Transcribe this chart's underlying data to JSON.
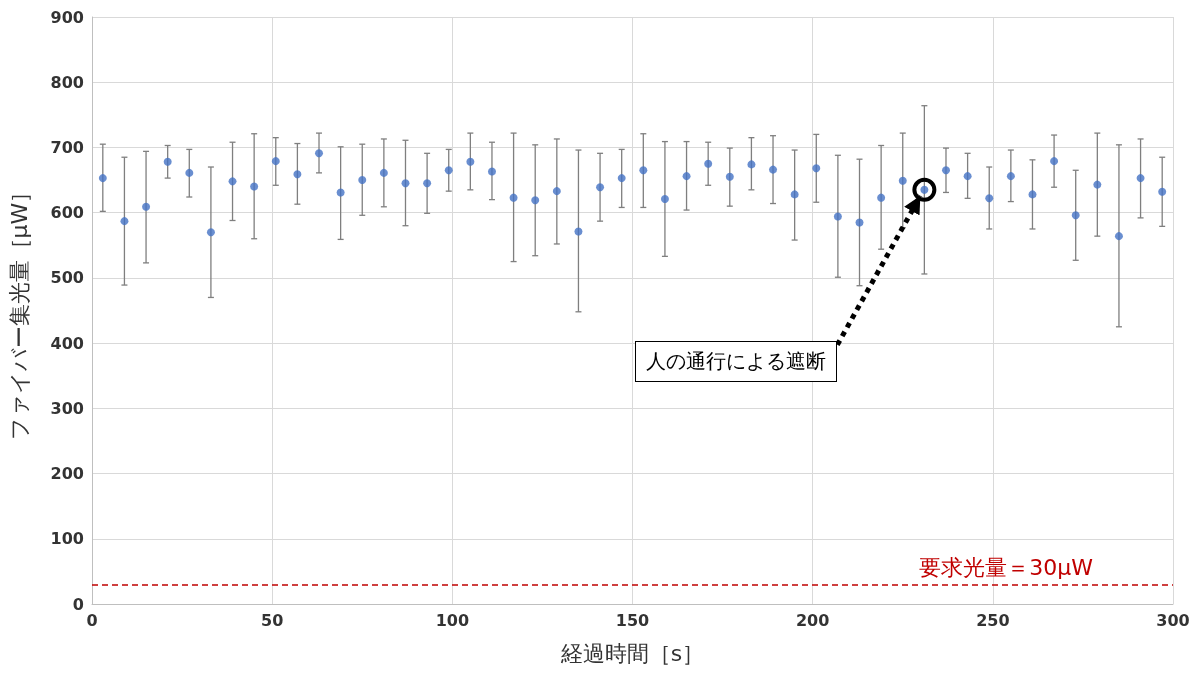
{
  "chart_data": {
    "type": "scatter",
    "xlabel": "経過時間［s］",
    "ylabel": "ファイバー集光量［μW］",
    "xlim": [
      0,
      300
    ],
    "xticks": [
      0,
      50,
      100,
      150,
      200,
      250,
      300
    ],
    "ylim": [
      0,
      900
    ],
    "yticks": [
      0,
      100,
      200,
      300,
      400,
      500,
      600,
      700,
      800,
      900
    ],
    "grid": true,
    "marker": "circle",
    "x": [
      3,
      9,
      15,
      21,
      27,
      33,
      39,
      45,
      51,
      57,
      63,
      69,
      75,
      81,
      87,
      93,
      99,
      105,
      111,
      117,
      123,
      129,
      135,
      141,
      147,
      153,
      159,
      165,
      171,
      177,
      183,
      189,
      195,
      201,
      207,
      213,
      219,
      225,
      231,
      237,
      243,
      249,
      255,
      261,
      267,
      273,
      279,
      285,
      291,
      297
    ],
    "series": [
      {
        "color": "#4472c4",
        "values": [
          653,
          587,
          609,
          678,
          661,
          570,
          648,
          640,
          679,
          659,
          691,
          631,
          650,
          661,
          645,
          645,
          665,
          678,
          663,
          623,
          619,
          633,
          571,
          639,
          653,
          665,
          621,
          656,
          675,
          655,
          674,
          666,
          628,
          668,
          594,
          585,
          623,
          649,
          635,
          665,
          656,
          622,
          656,
          628,
          679,
          596,
          643,
          564,
          653,
          632
        ],
        "errors": [
          [
            602,
            705
          ],
          [
            489,
            685
          ],
          [
            523,
            694
          ],
          [
            653,
            703
          ],
          [
            624,
            697
          ],
          [
            470,
            670
          ],
          [
            588,
            708
          ],
          [
            560,
            721
          ],
          [
            642,
            715
          ],
          [
            613,
            706
          ],
          [
            661,
            722
          ],
          [
            559,
            701
          ],
          [
            596,
            705
          ],
          [
            609,
            713
          ],
          [
            580,
            711
          ],
          [
            599,
            691
          ],
          [
            633,
            697
          ],
          [
            635,
            722
          ],
          [
            620,
            708
          ],
          [
            525,
            722
          ],
          [
            534,
            704
          ],
          [
            552,
            713
          ],
          [
            448,
            696
          ],
          [
            587,
            691
          ],
          [
            608,
            697
          ],
          [
            608,
            721
          ],
          [
            533,
            709
          ],
          [
            604,
            709
          ],
          [
            642,
            708
          ],
          [
            610,
            699
          ],
          [
            635,
            715
          ],
          [
            614,
            718
          ],
          [
            558,
            696
          ],
          [
            616,
            720
          ],
          [
            501,
            688
          ],
          [
            488,
            682
          ],
          [
            544,
            703
          ],
          [
            577,
            722
          ],
          [
            506,
            764
          ],
          [
            631,
            699
          ],
          [
            622,
            691
          ],
          [
            575,
            670
          ],
          [
            617,
            696
          ],
          [
            575,
            681
          ],
          [
            639,
            719
          ],
          [
            527,
            665
          ],
          [
            564,
            722
          ],
          [
            425,
            704
          ],
          [
            592,
            713
          ],
          [
            579,
            685
          ]
        ]
      }
    ],
    "ref_lines": [
      {
        "axis": "y",
        "value": 30,
        "label": "要求光量＝30μW",
        "color": "#c00000",
        "line_style": "dashed"
      }
    ],
    "annotations": [
      {
        "text": "人の通行による遮断",
        "x": 231,
        "y": 635
      }
    ]
  }
}
